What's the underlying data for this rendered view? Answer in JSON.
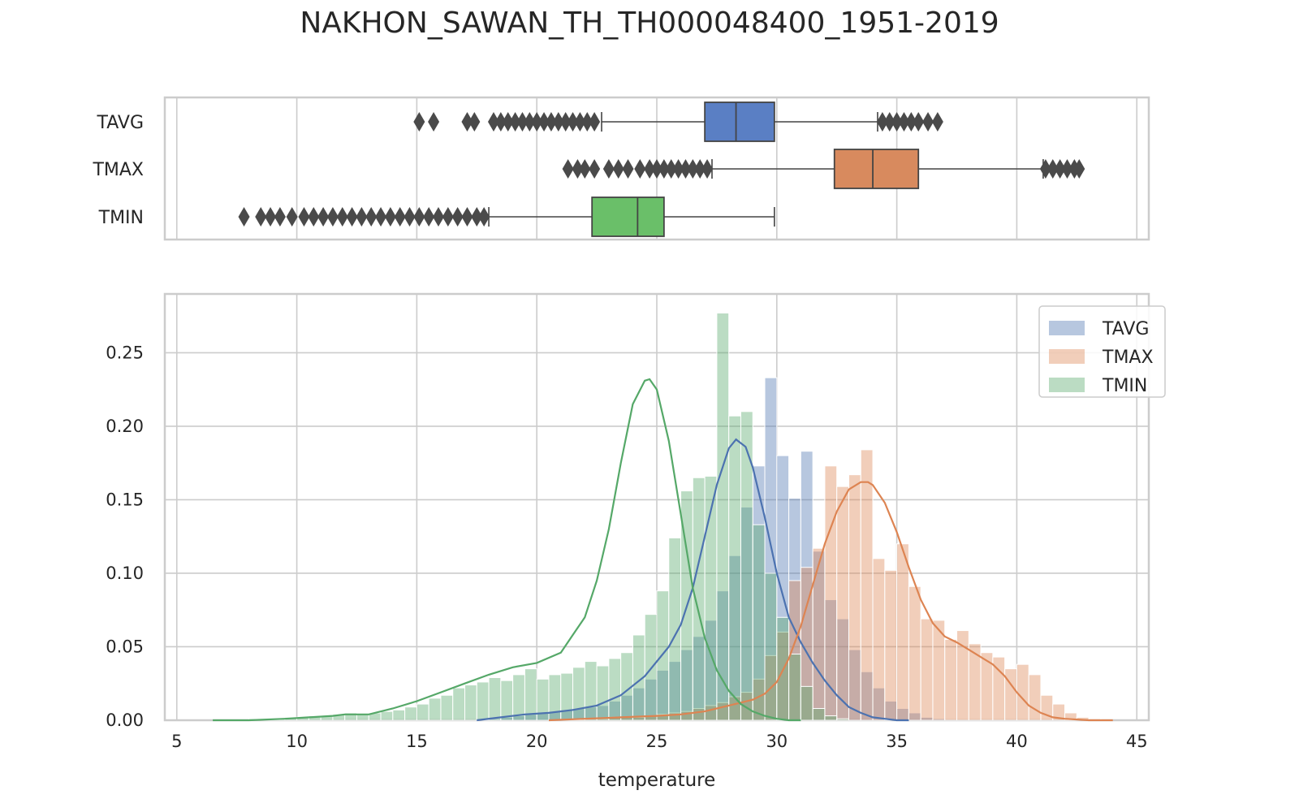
{
  "title": "NAKHON_SAWAN_TH_TH000048400_1951-2019",
  "colors": {
    "TAVG": "#4c72b0",
    "TMAX": "#dd8452",
    "TMIN": "#55a868",
    "TAVG_box": "#5a7fc4",
    "TMAX_box": "#d88a5e",
    "TMIN_box": "#6abf69",
    "grid": "#cccccc",
    "outlier": "#4a4a4a"
  },
  "chart_data": [
    {
      "type": "box",
      "orientation": "horizontal",
      "xlim": [
        4.5,
        45.5
      ],
      "x_ticks": [
        5,
        10,
        15,
        20,
        25,
        30,
        35,
        40,
        45
      ],
      "grid": true,
      "series": [
        {
          "name": "TAVG",
          "whisker_low": 22.7,
          "q1": 27.0,
          "median": 28.3,
          "q3": 29.9,
          "whisker_high": 34.2,
          "outliers_low": [
            15.1,
            15.7,
            17.1,
            17.4,
            18.2,
            18.5,
            18.8,
            19.1,
            19.4,
            19.7,
            20.0,
            20.3,
            20.6,
            20.9,
            21.2,
            21.5,
            21.8,
            22.1,
            22.4
          ],
          "outliers_high": [
            34.4,
            34.7,
            35.0,
            35.3,
            35.6,
            35.9,
            36.3,
            36.7
          ]
        },
        {
          "name": "TMAX",
          "whisker_low": 27.3,
          "q1": 32.4,
          "median": 34.0,
          "q3": 35.9,
          "whisker_high": 41.1,
          "outliers_low": [
            21.3,
            21.7,
            22.0,
            22.4,
            23.0,
            23.4,
            23.8,
            24.3,
            24.7,
            25.0,
            25.3,
            25.6,
            25.9,
            26.2,
            26.5,
            26.8,
            27.1
          ],
          "outliers_high": [
            41.2,
            41.5,
            41.8,
            42.1,
            42.4,
            42.6
          ]
        },
        {
          "name": "TMIN",
          "whisker_low": 18.0,
          "q1": 22.3,
          "median": 24.2,
          "q3": 25.3,
          "whisker_high": 29.9,
          "outliers_low": [
            7.8,
            8.5,
            8.9,
            9.3,
            9.8,
            10.3,
            10.7,
            11.1,
            11.5,
            11.9,
            12.3,
            12.7,
            13.1,
            13.5,
            13.9,
            14.3,
            14.7,
            15.1,
            15.5,
            15.9,
            16.3,
            16.7,
            17.1,
            17.5,
            17.8
          ],
          "outliers_high": []
        }
      ]
    },
    {
      "type": "histogram",
      "xlabel": "temperature",
      "ylabel": "",
      "xlim": [
        4.5,
        45.5
      ],
      "ylim": [
        0,
        0.29
      ],
      "x_ticks": [
        5,
        10,
        15,
        20,
        25,
        30,
        35,
        40,
        45
      ],
      "y_ticks": [
        "0.00",
        "0.05",
        "0.10",
        "0.15",
        "0.20",
        "0.25"
      ],
      "grid": true,
      "legend": "top-right",
      "bin_width": 0.5,
      "series": [
        {
          "name": "TAVG",
          "bin_start": 17.5,
          "density": [
            0.0,
            0.001,
            0.002,
            0.003,
            0.004,
            0.005,
            0.006,
            0.007,
            0.008,
            0.009,
            0.01,
            0.013,
            0.017,
            0.022,
            0.028,
            0.034,
            0.04,
            0.048,
            0.057,
            0.068,
            0.088,
            0.112,
            0.145,
            0.173,
            0.233,
            0.18,
            0.151,
            0.183,
            0.115,
            0.082,
            0.069,
            0.048,
            0.033,
            0.022,
            0.013,
            0.008,
            0.005,
            0.002,
            0.001
          ]
        },
        {
          "name": "TMAX",
          "bin_start": 20.5,
          "density": [
            0.0,
            0.0,
            0.001,
            0.001,
            0.001,
            0.002,
            0.002,
            0.002,
            0.003,
            0.004,
            0.005,
            0.006,
            0.008,
            0.01,
            0.012,
            0.016,
            0.019,
            0.028,
            0.044,
            0.06,
            0.095,
            0.104,
            0.117,
            0.173,
            0.159,
            0.167,
            0.184,
            0.11,
            0.102,
            0.12,
            0.091,
            0.069,
            0.068,
            0.055,
            0.061,
            0.052,
            0.046,
            0.043,
            0.035,
            0.038,
            0.031,
            0.017,
            0.011,
            0.005,
            0.002,
            0.001
          ]
        },
        {
          "name": "TMIN",
          "bin_start": 6.5,
          "density": [
            0.0,
            0.0,
            0.0,
            0.001,
            0.001,
            0.001,
            0.002,
            0.002,
            0.003,
            0.003,
            0.004,
            0.005,
            0.004,
            0.005,
            0.006,
            0.007,
            0.009,
            0.011,
            0.015,
            0.017,
            0.022,
            0.024,
            0.026,
            0.029,
            0.027,
            0.031,
            0.035,
            0.028,
            0.031,
            0.032,
            0.036,
            0.04,
            0.037,
            0.042,
            0.046,
            0.058,
            0.072,
            0.088,
            0.124,
            0.156,
            0.165,
            0.166,
            0.277,
            0.207,
            0.21,
            0.133,
            0.1,
            0.07,
            0.045,
            0.023,
            0.008,
            0.003,
            0.001
          ]
        }
      ],
      "kde": [
        {
          "name": "TAVG",
          "x": [
            17.5,
            18.5,
            19.5,
            20.5,
            21.5,
            22.5,
            23.5,
            24.5,
            25.5,
            26.0,
            26.5,
            27.0,
            27.5,
            28.0,
            28.3,
            28.7,
            29.0,
            29.5,
            30.0,
            30.5,
            31.0,
            31.5,
            32.0,
            32.5,
            33.0,
            33.5,
            34.0,
            34.5,
            35.0,
            35.5
          ],
          "y": [
            0.0,
            0.002,
            0.004,
            0.005,
            0.007,
            0.01,
            0.017,
            0.03,
            0.05,
            0.065,
            0.09,
            0.125,
            0.16,
            0.185,
            0.191,
            0.186,
            0.172,
            0.138,
            0.1,
            0.07,
            0.053,
            0.039,
            0.027,
            0.017,
            0.009,
            0.005,
            0.002,
            0.001,
            0.0,
            0.0
          ]
        },
        {
          "name": "TMAX",
          "x": [
            20.5,
            22.0,
            23.5,
            25.0,
            26.0,
            27.0,
            28.0,
            29.0,
            29.5,
            30.0,
            30.5,
            31.0,
            31.5,
            32.0,
            32.5,
            33.0,
            33.5,
            33.8,
            34.0,
            34.5,
            35.0,
            35.5,
            36.0,
            36.5,
            37.0,
            37.5,
            38.0,
            38.5,
            39.0,
            39.5,
            40.0,
            40.5,
            41.0,
            41.5,
            42.0,
            43.0,
            44.0
          ],
          "y": [
            0.0,
            0.001,
            0.002,
            0.003,
            0.004,
            0.006,
            0.01,
            0.014,
            0.018,
            0.026,
            0.042,
            0.064,
            0.092,
            0.12,
            0.142,
            0.157,
            0.162,
            0.162,
            0.16,
            0.148,
            0.128,
            0.104,
            0.082,
            0.066,
            0.057,
            0.053,
            0.048,
            0.043,
            0.038,
            0.03,
            0.019,
            0.01,
            0.005,
            0.002,
            0.001,
            0.0,
            0.0
          ]
        },
        {
          "name": "TMIN",
          "x": [
            6.5,
            8.0,
            9.5,
            10.5,
            11.5,
            12.0,
            12.5,
            13.0,
            14.0,
            15.0,
            16.0,
            17.0,
            18.0,
            19.0,
            20.0,
            21.0,
            21.5,
            22.0,
            22.5,
            23.0,
            23.5,
            24.0,
            24.5,
            24.7,
            25.0,
            25.5,
            26.0,
            26.5,
            27.0,
            27.5,
            28.0,
            28.5,
            29.0,
            29.5,
            30.0,
            30.5,
            31.0
          ],
          "y": [
            0.0,
            0.0,
            0.001,
            0.002,
            0.003,
            0.004,
            0.004,
            0.004,
            0.008,
            0.013,
            0.019,
            0.025,
            0.031,
            0.036,
            0.039,
            0.046,
            0.058,
            0.07,
            0.095,
            0.13,
            0.175,
            0.215,
            0.231,
            0.232,
            0.225,
            0.19,
            0.14,
            0.09,
            0.056,
            0.034,
            0.02,
            0.011,
            0.006,
            0.003,
            0.001,
            0.0,
            0.0
          ]
        }
      ]
    }
  ]
}
